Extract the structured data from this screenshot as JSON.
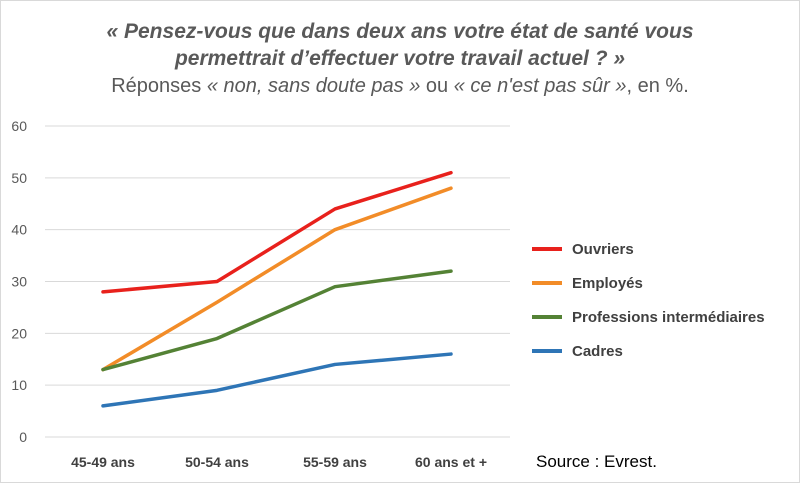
{
  "title": {
    "line1": "« Pensez-vous que dans deux ans votre état de santé vous",
    "line2": "permettrait d’effectuer votre travail actuel ? »",
    "line3_pre": "Réponses ",
    "line3_quote1": "« non, sans doute pas »",
    "line3_mid": " ou ",
    "line3_quote2": "« ce n'est pas sûr »",
    "line3_post": ", en %."
  },
  "source": "Source : Evrest.",
  "chart_data": {
    "type": "line",
    "categories": [
      "45-49 ans",
      "50-54 ans",
      "55-59 ans",
      "60 ans et +"
    ],
    "ylim": [
      0,
      60
    ],
    "yticks": [
      0,
      10,
      20,
      30,
      40,
      50,
      60
    ],
    "grid": true,
    "legend_position": "right",
    "series": [
      {
        "name": "Ouvriers",
        "color": "#e8211c",
        "values": [
          28,
          30,
          44,
          51
        ]
      },
      {
        "name": "Employés",
        "color": "#f28c28",
        "values": [
          13,
          26,
          40,
          48
        ]
      },
      {
        "name": "Professions intermédiaires",
        "color": "#548235",
        "values": [
          13,
          19,
          29,
          32
        ]
      },
      {
        "name": "Cadres",
        "color": "#2e75b6",
        "values": [
          6,
          9,
          14,
          16
        ]
      }
    ]
  }
}
